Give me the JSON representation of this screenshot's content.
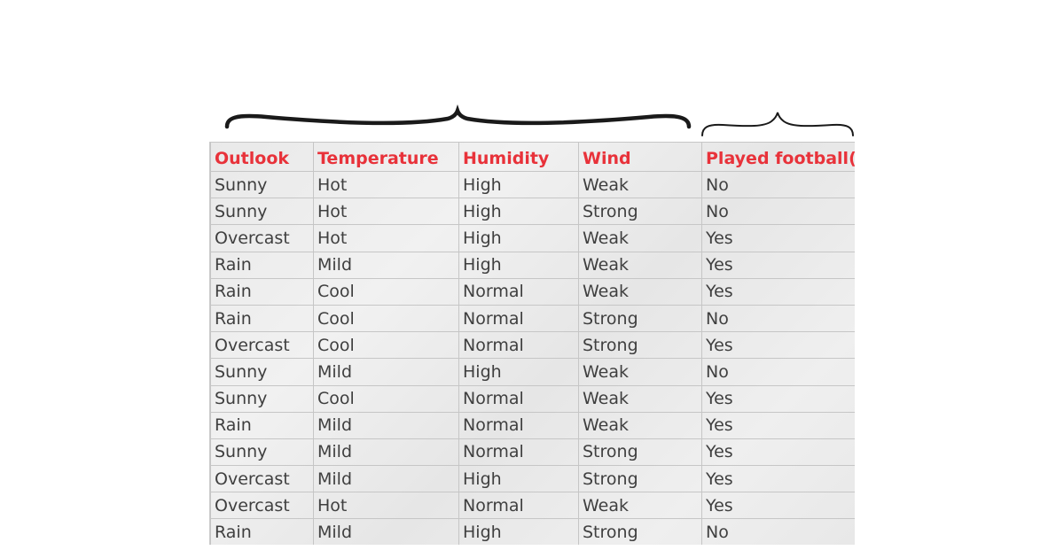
{
  "table": {
    "headers": [
      "Outlook",
      "Temperature",
      "Humidity",
      "Wind",
      "Played football(yes/no)"
    ],
    "rows": [
      [
        "Sunny",
        "Hot",
        "High",
        "Weak",
        "No"
      ],
      [
        "Sunny",
        "Hot",
        "High",
        "Strong",
        "No"
      ],
      [
        "Overcast",
        "Hot",
        "High",
        "Weak",
        "Yes"
      ],
      [
        "Rain",
        "Mild",
        "High",
        "Weak",
        "Yes"
      ],
      [
        "Rain",
        "Cool",
        "Normal",
        "Weak",
        "Yes"
      ],
      [
        "Rain",
        "Cool",
        "Normal",
        "Strong",
        "No"
      ],
      [
        "Overcast",
        "Cool",
        "Normal",
        "Strong",
        "Yes"
      ],
      [
        "Sunny",
        "Mild",
        "High",
        "Weak",
        "No"
      ],
      [
        "Sunny",
        "Cool",
        "Normal",
        "Weak",
        "Yes"
      ],
      [
        "Rain",
        "Mild",
        "Normal",
        "Weak",
        "Yes"
      ],
      [
        "Sunny",
        "Mild",
        "Normal",
        "Strong",
        "Yes"
      ],
      [
        "Overcast",
        "Mild",
        "High",
        "Strong",
        "Yes"
      ],
      [
        "Overcast",
        "Hot",
        "Normal",
        "Weak",
        "Yes"
      ],
      [
        "Rain",
        "Mild",
        "High",
        "Strong",
        "No"
      ]
    ]
  },
  "colors": {
    "header_text": "#e8323a",
    "cell_text": "#3f3f3f",
    "grid": "#c6c6c6",
    "brace": "#1a1a1a"
  }
}
